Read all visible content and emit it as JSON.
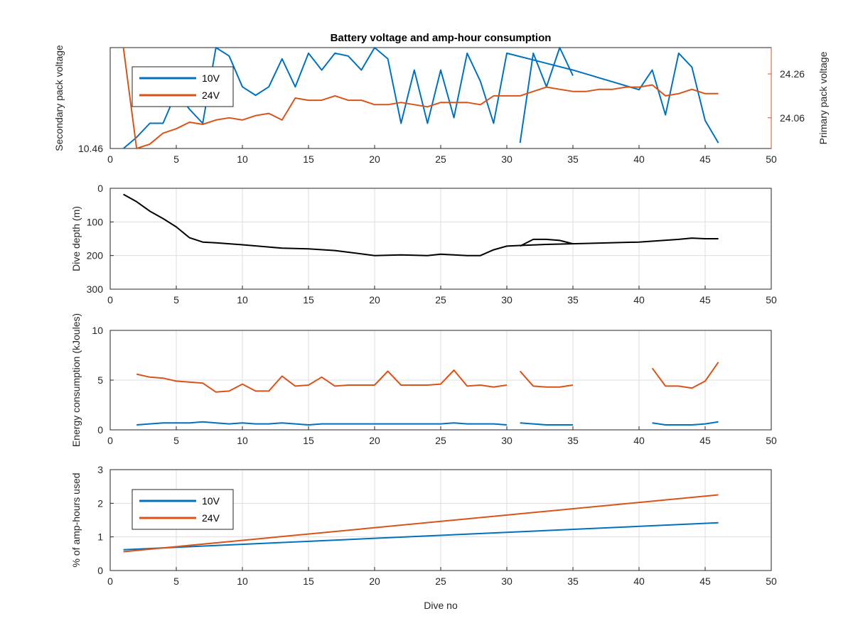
{
  "chart_data": [
    {
      "type": "line",
      "title": "Battery voltage and amp-hour consumption",
      "ylabel": "Secondary pack voltage",
      "ylabel_right": "Primary pack voltage",
      "xlim": [
        0,
        50
      ],
      "xticks": [
        0,
        5,
        10,
        15,
        20,
        25,
        30,
        35,
        40,
        45,
        50
      ],
      "ylim": [
        10.46,
        10.64
      ],
      "yticks": [
        10.46
      ],
      "ylim_right": [
        23.92,
        24.38
      ],
      "yticks_right": [
        24.06,
        24.26
      ],
      "grid": false,
      "legend": "top-left",
      "series": [
        {
          "name": "10V",
          "axis": "left",
          "color": "#0072bd",
          "x": [
            1,
            2,
            3,
            4,
            5,
            6,
            7,
            8,
            9,
            10,
            11,
            12,
            13,
            14,
            15,
            16,
            17,
            18,
            19,
            20,
            21,
            22,
            23,
            24,
            25,
            26,
            27,
            28,
            29,
            30,
            35,
            40,
            41,
            42,
            43,
            44,
            45,
            46
          ],
          "y": [
            10.46,
            10.48,
            10.505,
            10.505,
            10.56,
            10.53,
            10.505,
            10.64,
            10.625,
            10.57,
            10.555,
            10.57,
            10.62,
            10.57,
            10.63,
            10.6,
            10.63,
            10.625,
            10.6,
            10.64,
            10.62,
            10.505,
            10.6,
            10.505,
            10.6,
            10.515,
            10.63,
            10.58,
            10.505,
            10.63,
            10.6,
            10.565,
            10.6,
            10.52,
            10.63,
            10.605,
            10.51,
            10.47
          ]
        },
        {
          "name": "",
          "axis": "left",
          "color": "#0072bd",
          "x": [
            31,
            32,
            33,
            34,
            35
          ],
          "y": [
            10.47,
            10.63,
            10.57,
            10.64,
            10.59
          ]
        },
        {
          "name": "24V",
          "axis": "right",
          "color": "#d95319",
          "x": [
            1,
            2,
            3,
            4,
            5,
            6,
            7,
            8,
            9,
            10,
            11,
            12,
            13,
            14,
            15,
            16,
            17,
            18,
            19,
            20,
            21,
            22,
            23,
            24,
            25,
            26,
            27,
            28,
            29,
            30,
            31,
            32,
            33,
            34,
            35,
            36,
            37,
            38,
            39,
            40,
            41,
            42,
            43,
            44,
            45,
            46
          ],
          "y": [
            24.38,
            23.92,
            23.94,
            23.99,
            24.01,
            24.04,
            24.03,
            24.05,
            24.06,
            24.05,
            24.07,
            24.08,
            24.05,
            24.15,
            24.14,
            24.14,
            24.16,
            24.14,
            24.14,
            24.12,
            24.12,
            24.13,
            24.12,
            24.11,
            24.13,
            24.13,
            24.13,
            24.12,
            24.16,
            24.16,
            24.16,
            24.18,
            24.2,
            24.19,
            24.18,
            24.18,
            24.19,
            24.19,
            24.2,
            24.2,
            24.21,
            24.16,
            24.17,
            24.19,
            24.17,
            24.17
          ]
        }
      ]
    },
    {
      "type": "line",
      "ylabel": "Dive depth (m)",
      "xlim": [
        0,
        50
      ],
      "xticks": [
        0,
        5,
        10,
        15,
        20,
        25,
        30,
        35,
        40,
        45,
        50
      ],
      "ylim": [
        300,
        0
      ],
      "yticks": [
        0,
        100,
        200,
        300
      ],
      "grid": true,
      "series": [
        {
          "name": "",
          "color": "#000000",
          "x": [
            1,
            2,
            3,
            4,
            5,
            6,
            7,
            8,
            10,
            13,
            15,
            17,
            20,
            22,
            24,
            25,
            26,
            27,
            28,
            29,
            30,
            31,
            33,
            36,
            40,
            43,
            44,
            45,
            46
          ],
          "y": [
            18,
            40,
            68,
            90,
            115,
            147,
            160,
            162,
            168,
            178,
            180,
            185,
            200,
            198,
            200,
            196,
            198,
            200,
            200,
            183,
            172,
            170,
            167,
            164,
            160,
            152,
            148,
            150,
            150
          ]
        },
        {
          "name": "",
          "color": "#000000",
          "x": [
            31,
            32,
            33,
            34,
            35
          ],
          "y": [
            172,
            152,
            152,
            155,
            165
          ]
        }
      ]
    },
    {
      "type": "line",
      "ylabel": "Energy consumption (kJoules)",
      "xlim": [
        0,
        50
      ],
      "xticks": [
        0,
        5,
        10,
        15,
        20,
        25,
        30,
        35,
        40,
        45,
        50
      ],
      "ylim": [
        0,
        10
      ],
      "yticks": [
        0,
        5,
        10
      ],
      "grid": true,
      "series": [
        {
          "name": "24V",
          "color": "#d95319",
          "segments": [
            {
              "x": [
                2,
                3,
                4,
                5,
                6,
                7,
                8,
                9,
                10,
                11,
                12,
                13,
                14,
                15,
                16,
                17,
                18,
                19,
                20,
                21,
                22,
                23,
                24,
                25,
                26,
                27,
                28,
                29,
                30
              ],
              "y": [
                5.6,
                5.3,
                5.2,
                4.9,
                4.8,
                4.7,
                3.8,
                3.9,
                4.6,
                3.9,
                3.9,
                5.4,
                4.4,
                4.5,
                5.3,
                4.4,
                4.5,
                4.5,
                4.5,
                5.9,
                4.5,
                4.5,
                4.5,
                4.6,
                6.0,
                4.4,
                4.5,
                4.3,
                4.5
              ]
            },
            {
              "x": [
                31,
                32,
                33,
                34,
                35
              ],
              "y": [
                5.9,
                4.4,
                4.3,
                4.3,
                4.5
              ]
            },
            {
              "x": [
                41,
                42,
                43,
                44,
                45,
                46
              ],
              "y": [
                6.2,
                4.4,
                4.4,
                4.2,
                4.9,
                6.8
              ]
            }
          ]
        },
        {
          "name": "10V",
          "color": "#0072bd",
          "segments": [
            {
              "x": [
                2,
                3,
                4,
                5,
                6,
                7,
                8,
                9,
                10,
                11,
                12,
                13,
                14,
                15,
                16,
                17,
                18,
                19,
                20,
                21,
                22,
                23,
                24,
                25,
                26,
                27,
                28,
                29,
                30
              ],
              "y": [
                0.5,
                0.6,
                0.7,
                0.7,
                0.7,
                0.8,
                0.7,
                0.6,
                0.7,
                0.6,
                0.6,
                0.7,
                0.6,
                0.5,
                0.6,
                0.6,
                0.6,
                0.6,
                0.6,
                0.6,
                0.6,
                0.6,
                0.6,
                0.6,
                0.7,
                0.6,
                0.6,
                0.6,
                0.5
              ]
            },
            {
              "x": [
                31,
                32,
                33,
                34,
                35
              ],
              "y": [
                0.7,
                0.6,
                0.5,
                0.5,
                0.5
              ]
            },
            {
              "x": [
                41,
                42,
                43,
                44,
                45,
                46
              ],
              "y": [
                0.7,
                0.5,
                0.5,
                0.5,
                0.6,
                0.8
              ]
            }
          ]
        }
      ]
    },
    {
      "type": "line",
      "xlabel": "Dive no",
      "ylabel": "% of amp-hours used",
      "xlim": [
        0,
        50
      ],
      "xticks": [
        0,
        5,
        10,
        15,
        20,
        25,
        30,
        35,
        40,
        45,
        50
      ],
      "ylim": [
        0,
        3
      ],
      "yticks": [
        0,
        1,
        2,
        3
      ],
      "grid": true,
      "legend": "top-left",
      "series": [
        {
          "name": "10V",
          "color": "#0072bd",
          "x": [
            1,
            46
          ],
          "y": [
            0.62,
            1.42
          ]
        },
        {
          "name": "24V",
          "color": "#d95319",
          "x": [
            1,
            46
          ],
          "y": [
            0.56,
            2.25
          ]
        }
      ]
    }
  ]
}
